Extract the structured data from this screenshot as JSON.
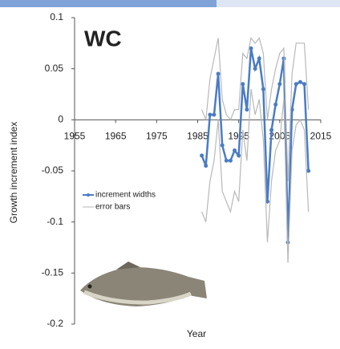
{
  "chart_data": {
    "type": "line",
    "title": "WC",
    "x_label": "Year",
    "y_label": "Growth increment index",
    "x": [
      1986,
      1987,
      1988,
      1989,
      1990,
      1991,
      1992,
      1993,
      1994,
      1995,
      1996,
      1997,
      1998,
      1999,
      2000,
      2001,
      2002,
      2003,
      2004,
      2005,
      2006,
      2007,
      2008,
      2009,
      2010,
      2011,
      2012
    ],
    "series": [
      {
        "name": "increment widths",
        "color": "#4a7cc4",
        "markers": true,
        "values": [
          -0.035,
          -0.045,
          0.005,
          0.005,
          0.045,
          -0.025,
          -0.04,
          -0.04,
          -0.03,
          -0.035,
          0.035,
          0.01,
          0.07,
          0.05,
          0.06,
          0.03,
          -0.08,
          -0.01,
          0.015,
          0.035,
          0.06,
          -0.12,
          0.01,
          0.035,
          0.037,
          0.035,
          -0.05
        ]
      },
      {
        "name": "error bars",
        "color": "#b8b8b8",
        "markers": false,
        "upper": [
          0.01,
          0.0,
          0.04,
          0.06,
          0.08,
          0.02,
          0.005,
          0.0,
          0.01,
          0.01,
          0.065,
          0.06,
          0.08,
          0.075,
          0.08,
          0.065,
          0.0,
          0.03,
          0.05,
          0.065,
          0.07,
          -0.06,
          0.045,
          0.075,
          0.075,
          0.075,
          0.01
        ],
        "lower": [
          -0.09,
          -0.1,
          -0.06,
          -0.04,
          0.0,
          -0.07,
          -0.08,
          -0.09,
          -0.07,
          -0.08,
          -0.01,
          -0.04,
          0.03,
          0.005,
          0.02,
          -0.02,
          -0.12,
          -0.06,
          -0.03,
          -0.02,
          0.02,
          -0.14,
          -0.03,
          -0.005,
          0.0,
          -0.01,
          -0.09
        ]
      }
    ],
    "xlim": [
      1955,
      2015
    ],
    "xticks": [
      1955,
      1965,
      1975,
      1985,
      1995,
      2005,
      2015
    ],
    "ylim": [
      -0.2,
      0.1
    ],
    "yticks": [
      -0.2,
      -0.15,
      -0.1,
      -0.05,
      0,
      0.05,
      0.1
    ]
  }
}
